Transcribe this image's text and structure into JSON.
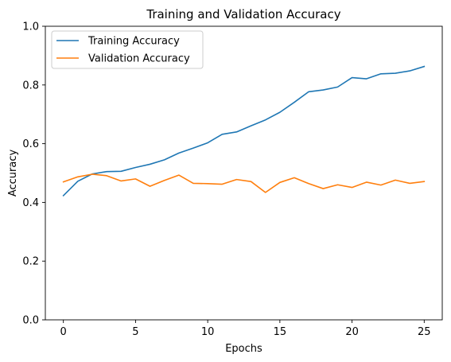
{
  "chart_data": {
    "type": "line",
    "title": "Training and Validation Accuracy",
    "xlabel": "Epochs",
    "ylabel": "Accuracy",
    "xlim": [
      -1.25,
      26.25
    ],
    "ylim": [
      0.0,
      1.0
    ],
    "xticks": [
      0,
      5,
      10,
      15,
      20,
      25
    ],
    "xtick_labels": [
      "0",
      "5",
      "10",
      "15",
      "20",
      "25"
    ],
    "yticks": [
      0.0,
      0.2,
      0.4,
      0.6,
      0.8,
      1.0
    ],
    "ytick_labels": [
      "0.0",
      "0.2",
      "0.4",
      "0.6",
      "0.8",
      "1.0"
    ],
    "grid": false,
    "legend_position": "top-left",
    "x": [
      0,
      1,
      2,
      3,
      4,
      5,
      6,
      7,
      8,
      9,
      10,
      11,
      12,
      13,
      14,
      15,
      16,
      17,
      18,
      19,
      20,
      21,
      22,
      23,
      24,
      25
    ],
    "series": [
      {
        "name": "Training Accuracy",
        "color": "#1f77b4",
        "values": [
          0.423,
          0.472,
          0.497,
          0.505,
          0.506,
          0.519,
          0.53,
          0.545,
          0.568,
          0.585,
          0.603,
          0.632,
          0.64,
          0.661,
          0.681,
          0.707,
          0.741,
          0.777,
          0.783,
          0.793,
          0.825,
          0.821,
          0.838,
          0.84,
          0.848,
          0.863
        ]
      },
      {
        "name": "Validation Accuracy",
        "color": "#ff7f0e",
        "values": [
          0.47,
          0.487,
          0.496,
          0.491,
          0.473,
          0.48,
          0.455,
          0.475,
          0.493,
          0.465,
          0.464,
          0.462,
          0.478,
          0.471,
          0.434,
          0.468,
          0.484,
          0.464,
          0.447,
          0.46,
          0.451,
          0.469,
          0.459,
          0.476,
          0.465,
          0.471
        ]
      }
    ]
  }
}
